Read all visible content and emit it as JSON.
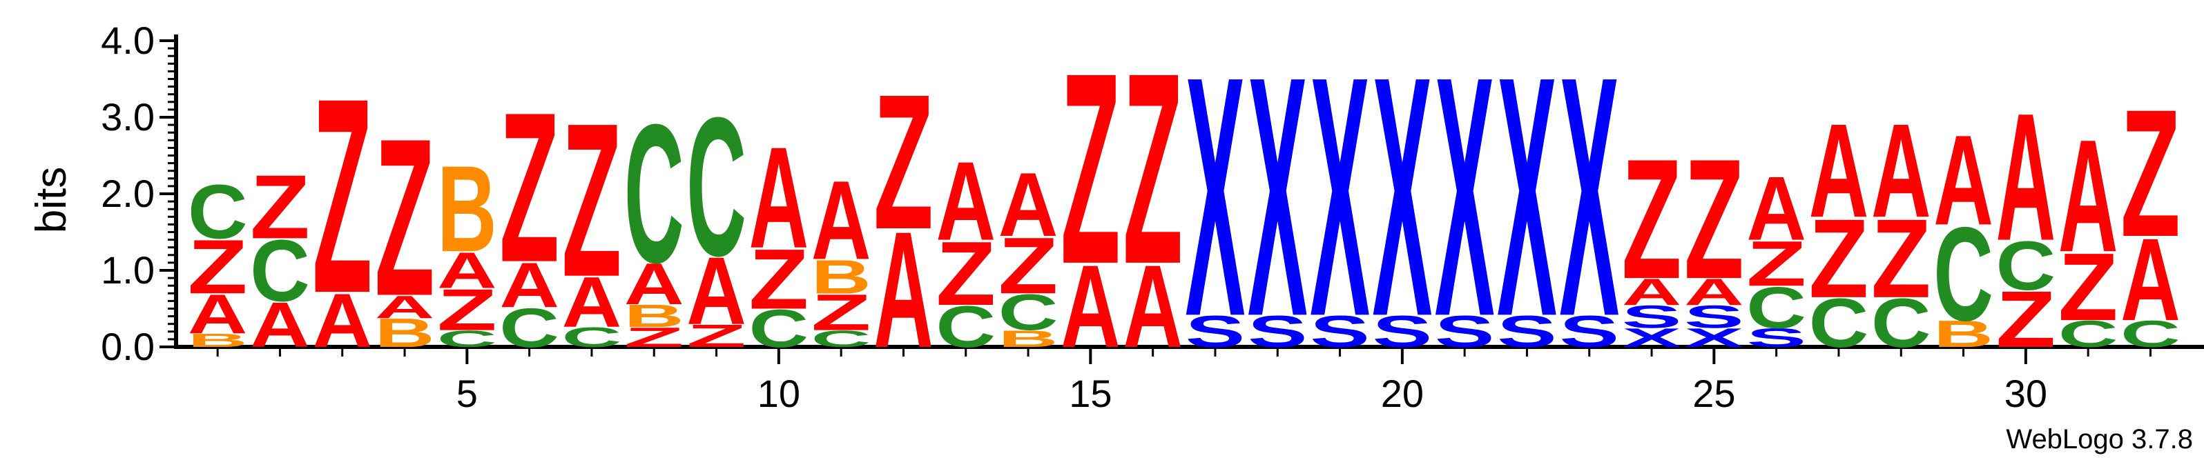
{
  "chart_data": {
    "type": "sequence-logo",
    "ylabel": "bits",
    "ylim": [
      0,
      4
    ],
    "y_ticks": [
      "0.0",
      "1.0",
      "2.0",
      "3.0",
      "4.0"
    ],
    "x_ticks": [
      5,
      10,
      15,
      20,
      25,
      30
    ],
    "num_positions": 32,
    "footer": "WebLogo 3.7.8",
    "colors": {
      "A": "#ff0000",
      "Z": "#ff0000",
      "C": "#228b22",
      "B": "#ff8c00",
      "X": "#0000ff",
      "S": "#0000ff"
    },
    "positions": [
      [
        [
          "B",
          0.18
        ],
        [
          "A",
          0.52
        ],
        [
          "Z",
          0.72
        ],
        [
          "C",
          0.72
        ]
      ],
      [
        [
          "A",
          0.6
        ],
        [
          "C",
          0.82
        ],
        [
          "Z",
          0.85
        ]
      ],
      [
        [
          "A",
          0.72
        ],
        [
          "Z",
          2.6
        ]
      ],
      [
        [
          "B",
          0.38
        ],
        [
          "A",
          0.3
        ],
        [
          "Z",
          2.1
        ]
      ],
      [
        [
          "C",
          0.22
        ],
        [
          "Z",
          0.55
        ],
        [
          "A",
          0.48
        ],
        [
          "B",
          1.15
        ]
      ],
      [
        [
          "C",
          0.52
        ],
        [
          "A",
          0.6
        ],
        [
          "Z",
          2.0
        ]
      ],
      [
        [
          "C",
          0.26
        ],
        [
          "A",
          0.67
        ],
        [
          "Z",
          2.05
        ]
      ],
      [
        [
          "Z",
          0.26
        ],
        [
          "B",
          0.3
        ],
        [
          "A",
          0.55
        ],
        [
          "C",
          1.85
        ]
      ],
      [
        [
          "Z",
          0.3
        ],
        [
          "A",
          0.9
        ],
        [
          "C",
          1.85
        ]
      ],
      [
        [
          "C",
          0.5
        ],
        [
          "Z",
          0.8
        ],
        [
          "A",
          1.35
        ]
      ],
      [
        [
          "C",
          0.22
        ],
        [
          "Z",
          0.48
        ],
        [
          "B",
          0.45
        ],
        [
          "A",
          1.05
        ]
      ],
      [
        [
          "A",
          1.55
        ],
        [
          "Z",
          1.8
        ]
      ],
      [
        [
          "C",
          0.55
        ],
        [
          "Z",
          0.85
        ],
        [
          "A",
          1.05
        ]
      ],
      [
        [
          "B",
          0.22
        ],
        [
          "C",
          0.48
        ],
        [
          "Z",
          0.75
        ],
        [
          "A",
          0.85
        ]
      ],
      [
        [
          "A",
          1.1
        ],
        [
          "Z",
          2.55
        ]
      ],
      [
        [
          "A",
          1.1
        ],
        [
          "Z",
          2.55
        ]
      ],
      [
        [
          "S",
          0.42
        ],
        [
          "X",
          3.2
        ]
      ],
      [
        [
          "S",
          0.42
        ],
        [
          "X",
          3.2
        ]
      ],
      [
        [
          "S",
          0.42
        ],
        [
          "X",
          3.2
        ]
      ],
      [
        [
          "S",
          0.42
        ],
        [
          "X",
          3.2
        ]
      ],
      [
        [
          "S",
          0.42
        ],
        [
          "X",
          3.2
        ]
      ],
      [
        [
          "S",
          0.42
        ],
        [
          "X",
          3.2
        ]
      ],
      [
        [
          "S",
          0.42
        ],
        [
          "X",
          3.2
        ]
      ],
      [
        [
          "X",
          0.25
        ],
        [
          "S",
          0.3
        ],
        [
          "A",
          0.35
        ],
        [
          "Z",
          1.6
        ]
      ],
      [
        [
          "X",
          0.25
        ],
        [
          "S",
          0.3
        ],
        [
          "A",
          0.35
        ],
        [
          "Z",
          1.6
        ]
      ],
      [
        [
          "S",
          0.25
        ],
        [
          "C",
          0.55
        ],
        [
          "Z",
          0.6
        ],
        [
          "A",
          0.85
        ]
      ],
      [
        [
          "C",
          0.65
        ],
        [
          "Z",
          1.05
        ],
        [
          "A",
          1.25
        ]
      ],
      [
        [
          "C",
          0.65
        ],
        [
          "Z",
          1.05
        ],
        [
          "A",
          1.25
        ]
      ],
      [
        [
          "B",
          0.35
        ],
        [
          "C",
          1.25
        ],
        [
          "A",
          1.2
        ]
      ],
      [
        [
          "Z",
          0.75
        ],
        [
          "C",
          0.65
        ],
        [
          "A",
          1.7
        ]
      ],
      [
        [
          "C",
          0.35
        ],
        [
          "Z",
          0.9
        ],
        [
          "A",
          1.5
        ]
      ],
      [
        [
          "C",
          0.35
        ],
        [
          "A",
          1.1
        ],
        [
          "Z",
          1.7
        ]
      ]
    ]
  }
}
